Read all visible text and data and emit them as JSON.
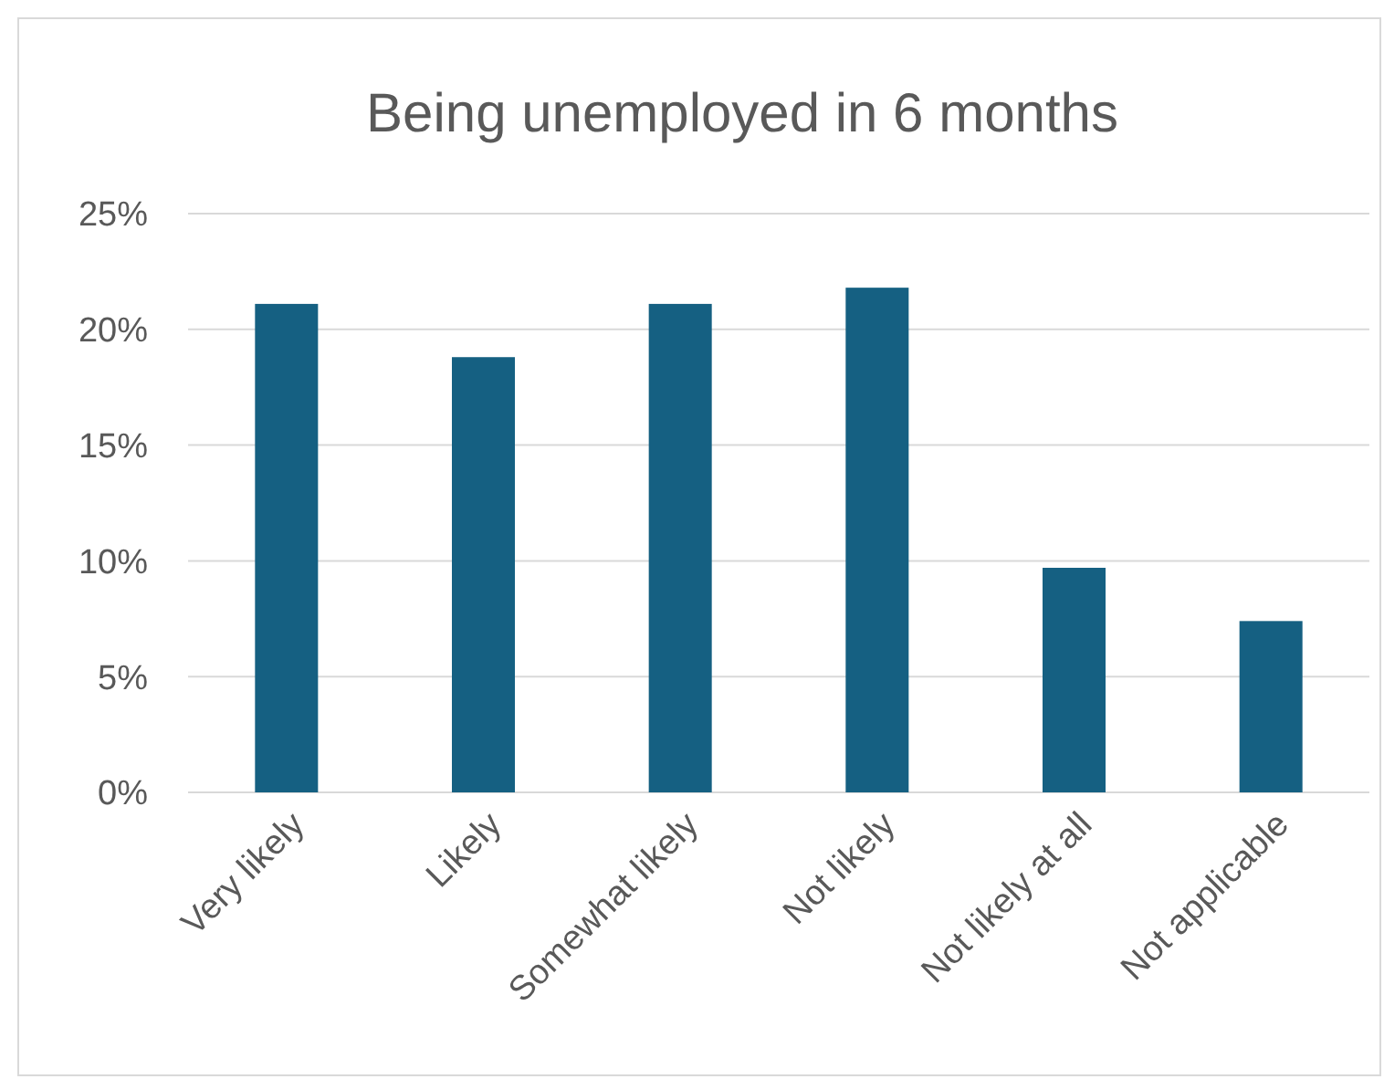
{
  "chart_data": {
    "type": "bar",
    "title": "Being unemployed in 6 months",
    "categories": [
      "Very likely",
      "Likely",
      "Somewhat likely",
      "Not likely",
      "Not likely at all",
      "Not applicable"
    ],
    "values": [
      21.1,
      18.8,
      21.1,
      21.8,
      9.7,
      7.4
    ],
    "color": "#156082",
    "ylim": [
      0,
      25
    ],
    "yticks": [
      {
        "value": 0,
        "label": "0%"
      },
      {
        "value": 5,
        "label": "5%"
      },
      {
        "value": 10,
        "label": "10%"
      },
      {
        "value": 15,
        "label": "15%"
      },
      {
        "value": 20,
        "label": "20%"
      },
      {
        "value": 25,
        "label": "25%"
      }
    ],
    "grid": "y"
  }
}
